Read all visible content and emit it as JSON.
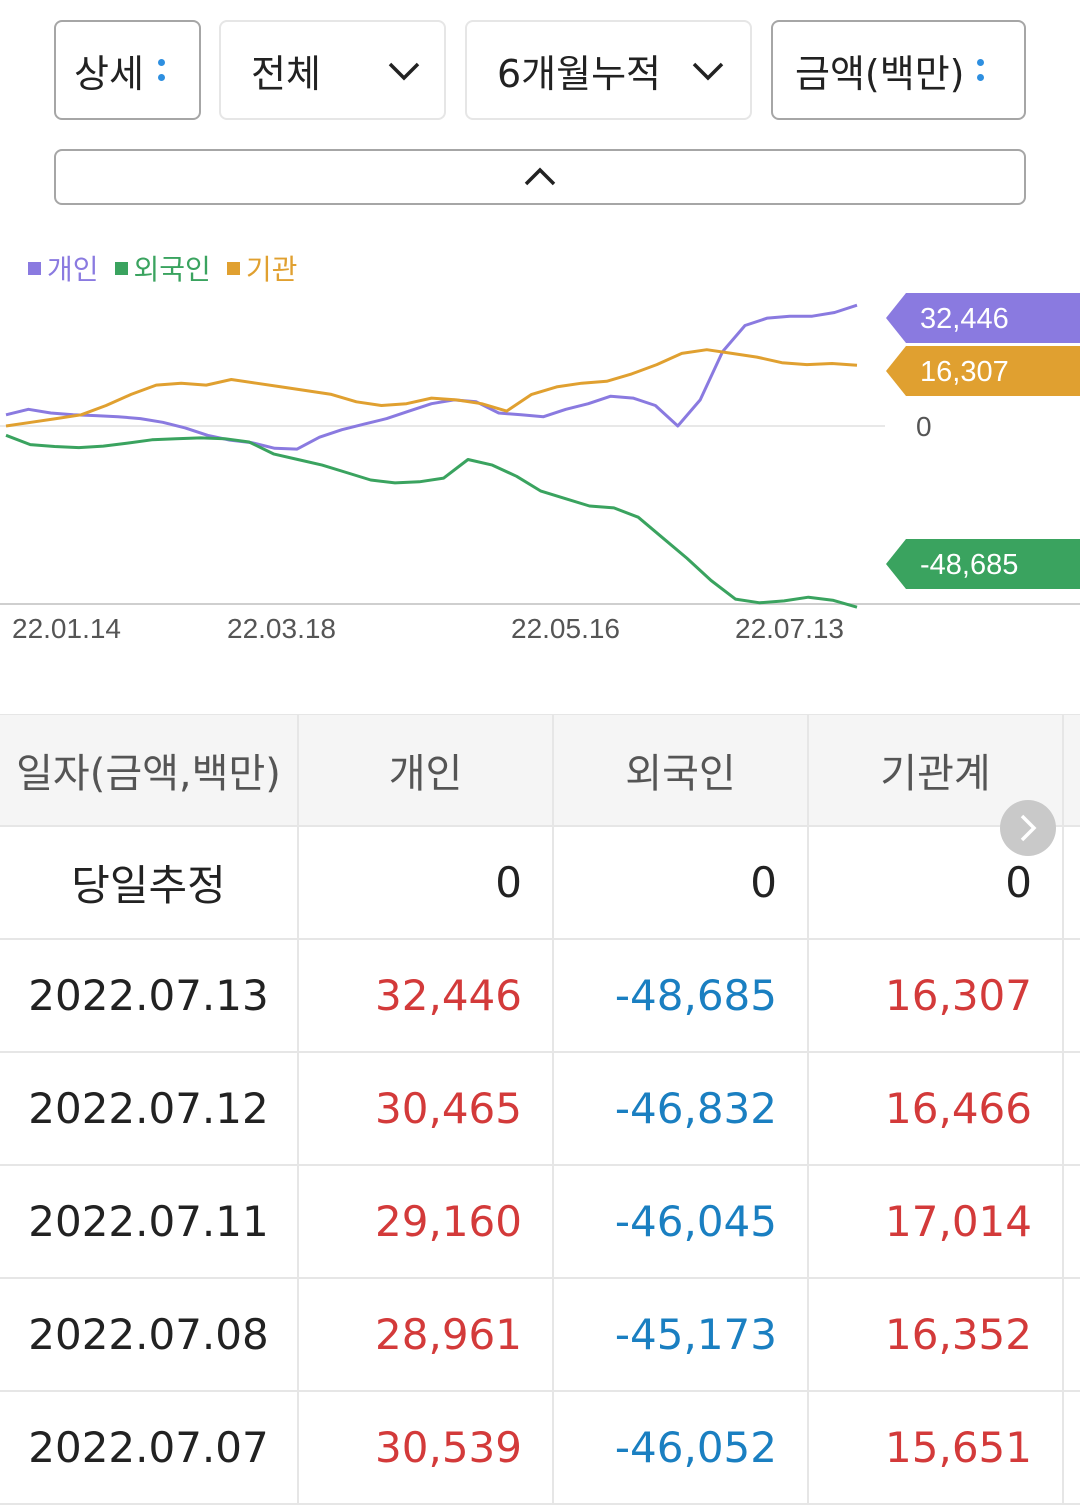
{
  "controls": {
    "detail_label": "상세",
    "scope_label": "전체",
    "period_label": "6개월누적",
    "unit_label": "금액(백만)"
  },
  "icons": {
    "detail_menu": "kebab-icon",
    "scope_dropdown": "chevron-down-icon",
    "period_dropdown": "chevron-down-icon",
    "unit_menu": "kebab-icon",
    "collapse": "chevron-up-icon",
    "scroll_right": "chevron-right-icon"
  },
  "legend": [
    {
      "label": "개인",
      "color": "#8a7ae0"
    },
    {
      "label": "외국인",
      "color": "#3aa35f"
    },
    {
      "label": "기관",
      "color": "#e0a030"
    }
  ],
  "chart_data": {
    "type": "line",
    "x_ticks": [
      "22.01.14",
      "22.03.18",
      "22.05.16",
      "22.07.13"
    ],
    "zero_label": "0",
    "series": [
      {
        "name": "개인",
        "color": "#8a7ae0",
        "last_label": "32,446",
        "values": [
          3000,
          4500,
          3500,
          3000,
          2800,
          2500,
          2000,
          1000,
          -500,
          -2500,
          -3800,
          -4500,
          -6000,
          -6200,
          -3000,
          -1000,
          500,
          2000,
          4000,
          6000,
          7000,
          6500,
          3500,
          3000,
          2500,
          4500,
          6000,
          8000,
          7500,
          5500,
          0,
          7000,
          20000,
          27000,
          29000,
          29500,
          29500,
          30500,
          32446
        ]
      },
      {
        "name": "외국인",
        "color": "#3aa35f",
        "last_label": "-48,685",
        "values": [
          -2500,
          -5000,
          -5500,
          -5800,
          -5400,
          -4600,
          -3700,
          -3400,
          -3200,
          -3400,
          -4300,
          -7500,
          -9000,
          -10500,
          -12500,
          -14500,
          -15300,
          -15000,
          -14000,
          -9000,
          -10500,
          -13500,
          -17500,
          -19500,
          -21500,
          -22000,
          -24500,
          -30000,
          -35500,
          -41500,
          -46500,
          -47500,
          -47000,
          -46000,
          -46800,
          -48685
        ]
      },
      {
        "name": "기관",
        "color": "#e0a030",
        "last_label": "16,307",
        "values": [
          0,
          1000,
          2000,
          3000,
          5500,
          8500,
          11000,
          11500,
          11000,
          12500,
          11500,
          10500,
          9500,
          8500,
          6500,
          5500,
          6000,
          7500,
          7000,
          6000,
          4000,
          8500,
          10500,
          11500,
          12000,
          14000,
          16500,
          19500,
          20500,
          19500,
          18500,
          17000,
          16500,
          16800,
          16307
        ]
      }
    ],
    "ylim": [
      -50000,
      36000
    ],
    "legend_position": "top-left"
  },
  "table": {
    "headers": [
      "일자(금액,백만)",
      "개인",
      "외국인",
      "기관계"
    ],
    "rows": [
      {
        "date": "당일추정",
        "individual": "0",
        "foreign": "0",
        "institution": "0",
        "ind_sign": "zero",
        "for_sign": "zero",
        "ins_sign": "zero"
      },
      {
        "date": "2022.07.13",
        "individual": "32,446",
        "foreign": "-48,685",
        "institution": "16,307",
        "ind_sign": "pos",
        "for_sign": "neg",
        "ins_sign": "pos"
      },
      {
        "date": "2022.07.12",
        "individual": "30,465",
        "foreign": "-46,832",
        "institution": "16,466",
        "ind_sign": "pos",
        "for_sign": "neg",
        "ins_sign": "pos"
      },
      {
        "date": "2022.07.11",
        "individual": "29,160",
        "foreign": "-46,045",
        "institution": "17,014",
        "ind_sign": "pos",
        "for_sign": "neg",
        "ins_sign": "pos"
      },
      {
        "date": "2022.07.08",
        "individual": "28,961",
        "foreign": "-45,173",
        "institution": "16,352",
        "ind_sign": "pos",
        "for_sign": "neg",
        "ins_sign": "pos"
      },
      {
        "date": "2022.07.07",
        "individual": "30,539",
        "foreign": "-46,052",
        "institution": "15,651",
        "ind_sign": "pos",
        "for_sign": "neg",
        "ins_sign": "pos"
      }
    ]
  }
}
